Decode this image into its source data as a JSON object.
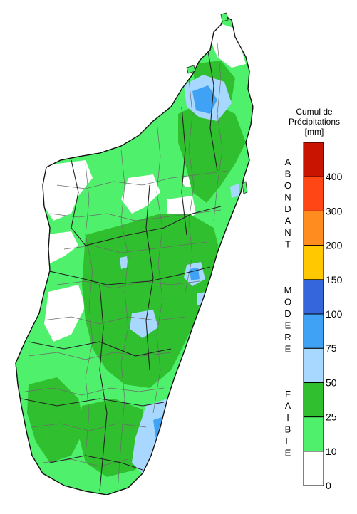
{
  "legend": {
    "title_line1": "Cumul de",
    "title_line2": "Précipitations",
    "unit": "[mm]",
    "classes": [
      {
        "min": 0,
        "max": 10,
        "color": "#ffffff"
      },
      {
        "min": 10,
        "max": 25,
        "color": "#4ff06b"
      },
      {
        "min": 25,
        "max": 50,
        "color": "#2fbf2f"
      },
      {
        "min": 50,
        "max": 75,
        "color": "#a8d8ff"
      },
      {
        "min": 75,
        "max": 100,
        "color": "#3fa2f5"
      },
      {
        "min": 100,
        "max": 150,
        "color": "#3566dc"
      },
      {
        "min": 150,
        "max": 200,
        "color": "#ffc800"
      },
      {
        "min": 200,
        "max": 300,
        "color": "#ff8c1e"
      },
      {
        "min": 300,
        "max": 400,
        "color": "#ff4614"
      },
      {
        "min": 400,
        "max": null,
        "color": "#c81400"
      }
    ],
    "tick_labels": [
      "0",
      "10",
      "25",
      "50",
      "75",
      "100",
      "150",
      "200",
      "300",
      "400"
    ],
    "categories": [
      {
        "name": "ABONDANT",
        "letters": [
          "A",
          "B",
          "O",
          "N",
          "D",
          "A",
          "N",
          "T"
        ]
      },
      {
        "name": "MODERE",
        "letters": [
          "M",
          "O",
          "D",
          "E",
          "R",
          "E"
        ]
      },
      {
        "name": "FAIBLE",
        "letters": [
          "F",
          "A",
          "I",
          "B",
          "L",
          "E"
        ]
      }
    ]
  },
  "map": {
    "land_base_color": "#4ff06b",
    "dark_green": "#2fbf2f",
    "light_blue": "#a8d8ff",
    "mid_blue": "#3fa2f5",
    "dry_white": "#ffffff",
    "border_color": "#222222"
  }
}
